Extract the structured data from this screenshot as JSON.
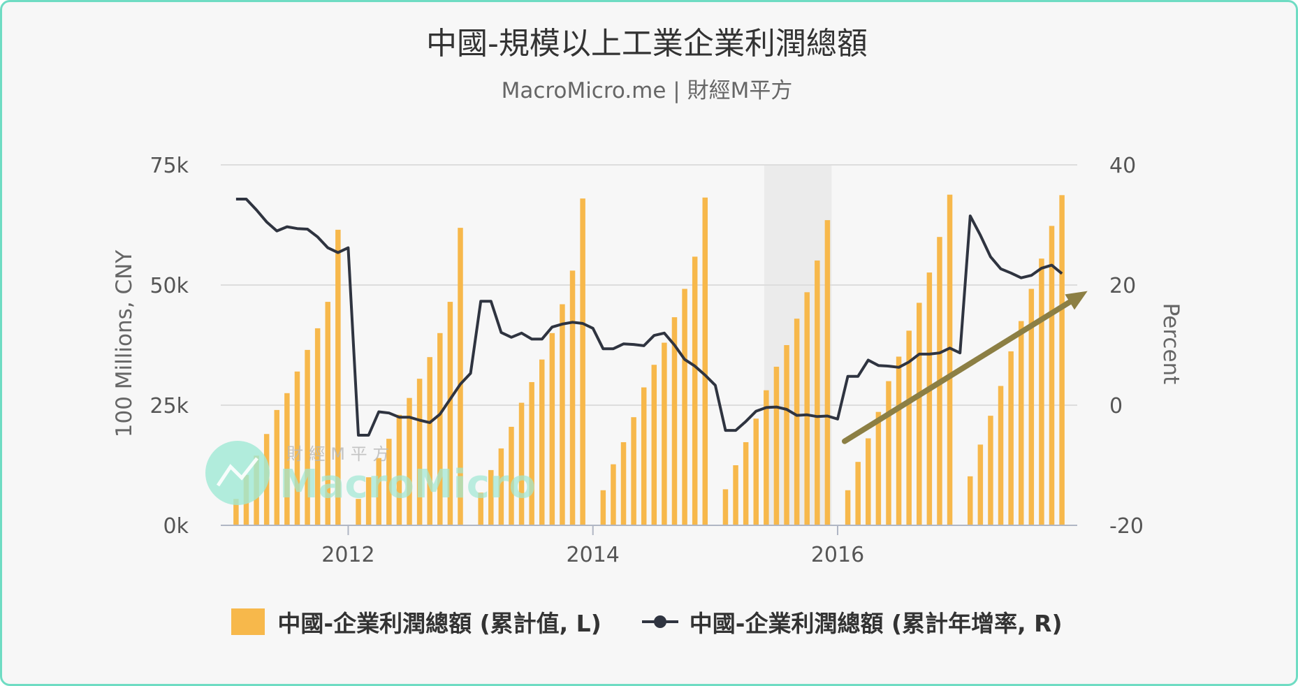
{
  "chart_title": "中國-規模以上工業企業利潤總額",
  "chart_subtitle": "MacroMicro.me | 財經M平方",
  "watermark": {
    "brand": "MacroMicro",
    "brand_zh": "財 經 M 平 方"
  },
  "colors": {
    "bar": "#f7b84b",
    "line": "#2f3440",
    "arrow": "#8c7f44",
    "recession_band": "#ebebeb",
    "watermark": "#9fe8d4"
  },
  "chart_data": {
    "type": "bar+line",
    "x_tick_labels": [
      "2012",
      "2014",
      "2016"
    ],
    "y_left": {
      "label": "100 Millions, CNY",
      "ticks": [
        "0k",
        "25k",
        "50k",
        "75k"
      ],
      "range": [
        0,
        75000
      ]
    },
    "y_right": {
      "label": "Percent",
      "ticks": [
        "-20",
        "0",
        "20",
        "40"
      ],
      "range": [
        -20,
        40
      ]
    },
    "x_range": [
      "2011-01",
      "2017-12"
    ],
    "grid": true,
    "legend_position": "bottom-center",
    "shaded_period": [
      "2015-06",
      "2015-12"
    ],
    "annotation": {
      "type": "arrow",
      "from": [
        "2016-01",
        -6
      ],
      "to": [
        "2017-12",
        19
      ]
    },
    "series": [
      {
        "name": "中國-企業利潤總額 (累計值, L)",
        "type": "bar",
        "axis": "left",
        "points": [
          [
            "2011-02",
            5500
          ],
          [
            "2011-03",
            10500
          ],
          [
            "2011-04",
            14500
          ],
          [
            "2011-05",
            19000
          ],
          [
            "2011-06",
            24000
          ],
          [
            "2011-07",
            27500
          ],
          [
            "2011-08",
            32000
          ],
          [
            "2011-09",
            36500
          ],
          [
            "2011-10",
            41000
          ],
          [
            "2011-11",
            46500
          ],
          [
            "2011-12",
            61500
          ],
          [
            "2012-02",
            5500
          ],
          [
            "2012-03",
            10000
          ],
          [
            "2012-04",
            14000
          ],
          [
            "2012-05",
            18000
          ],
          [
            "2012-06",
            23000
          ],
          [
            "2012-07",
            26500
          ],
          [
            "2012-08",
            30500
          ],
          [
            "2012-09",
            35000
          ],
          [
            "2012-10",
            40000
          ],
          [
            "2012-11",
            46500
          ],
          [
            "2012-12",
            61900
          ],
          [
            "2013-02",
            6800
          ],
          [
            "2013-03",
            11500
          ],
          [
            "2013-04",
            16000
          ],
          [
            "2013-05",
            20500
          ],
          [
            "2013-06",
            25500
          ],
          [
            "2013-07",
            29800
          ],
          [
            "2013-08",
            34500
          ],
          [
            "2013-09",
            40000
          ],
          [
            "2013-10",
            46000
          ],
          [
            "2013-11",
            53000
          ],
          [
            "2013-12",
            68000
          ],
          [
            "2014-02",
            7300
          ],
          [
            "2014-03",
            12700
          ],
          [
            "2014-04",
            17300
          ],
          [
            "2014-05",
            22500
          ],
          [
            "2014-06",
            28700
          ],
          [
            "2014-07",
            33400
          ],
          [
            "2014-08",
            38000
          ],
          [
            "2014-09",
            43300
          ],
          [
            "2014-10",
            49200
          ],
          [
            "2014-11",
            55900
          ],
          [
            "2014-12",
            68200
          ],
          [
            "2015-02",
            7500
          ],
          [
            "2015-03",
            12500
          ],
          [
            "2015-04",
            17300
          ],
          [
            "2015-05",
            22200
          ],
          [
            "2015-06",
            28100
          ],
          [
            "2015-07",
            33000
          ],
          [
            "2015-08",
            37500
          ],
          [
            "2015-09",
            43000
          ],
          [
            "2015-10",
            48500
          ],
          [
            "2015-11",
            55100
          ],
          [
            "2015-12",
            63500
          ],
          [
            "2016-02",
            7300
          ],
          [
            "2016-03",
            13200
          ],
          [
            "2016-04",
            18100
          ],
          [
            "2016-05",
            23600
          ],
          [
            "2016-06",
            30000
          ],
          [
            "2016-07",
            35100
          ],
          [
            "2016-08",
            40500
          ],
          [
            "2016-09",
            46300
          ],
          [
            "2016-10",
            52600
          ],
          [
            "2016-11",
            60000
          ],
          [
            "2016-12",
            68800
          ],
          [
            "2017-02",
            10200
          ],
          [
            "2017-03",
            16800
          ],
          [
            "2017-04",
            22800
          ],
          [
            "2017-05",
            29000
          ],
          [
            "2017-06",
            36200
          ],
          [
            "2017-07",
            42500
          ],
          [
            "2017-08",
            49200
          ],
          [
            "2017-09",
            55500
          ],
          [
            "2017-10",
            62300
          ],
          [
            "2017-11",
            68700
          ]
        ]
      },
      {
        "name": "中國-企業利潤總額 (累計年增率, R)",
        "type": "line",
        "axis": "right",
        "points": [
          [
            "2011-02",
            34.3
          ],
          [
            "2011-03",
            34.3
          ],
          [
            "2011-04",
            32.5
          ],
          [
            "2011-05",
            30.5
          ],
          [
            "2011-06",
            29.0
          ],
          [
            "2011-07",
            29.7
          ],
          [
            "2011-08",
            29.4
          ],
          [
            "2011-09",
            29.3
          ],
          [
            "2011-10",
            28.0
          ],
          [
            "2011-11",
            26.2
          ],
          [
            "2011-12",
            25.4
          ],
          [
            "2012-01",
            26.2
          ],
          [
            "2012-02",
            -5.0
          ],
          [
            "2012-03",
            -5.0
          ],
          [
            "2012-04",
            -1.1
          ],
          [
            "2012-05",
            -1.3
          ],
          [
            "2012-06",
            -2.0
          ],
          [
            "2012-07",
            -2.0
          ],
          [
            "2012-08",
            -2.5
          ],
          [
            "2012-09",
            -2.9
          ],
          [
            "2012-10",
            -1.5
          ],
          [
            "2012-11",
            1.0
          ],
          [
            "2012-12",
            3.5
          ],
          [
            "2013-01",
            5.3
          ],
          [
            "2013-02",
            17.3
          ],
          [
            "2013-03",
            17.3
          ],
          [
            "2013-04",
            12.1
          ],
          [
            "2013-05",
            11.3
          ],
          [
            "2013-06",
            12.0
          ],
          [
            "2013-07",
            11.0
          ],
          [
            "2013-08",
            11.0
          ],
          [
            "2013-09",
            13.0
          ],
          [
            "2013-10",
            13.5
          ],
          [
            "2013-11",
            13.8
          ],
          [
            "2013-12",
            13.6
          ],
          [
            "2014-01",
            12.8
          ],
          [
            "2014-02",
            9.4
          ],
          [
            "2014-03",
            9.4
          ],
          [
            "2014-04",
            10.2
          ],
          [
            "2014-05",
            10.1
          ],
          [
            "2014-06",
            9.9
          ],
          [
            "2014-07",
            11.6
          ],
          [
            "2014-08",
            12.0
          ],
          [
            "2014-09",
            10.0
          ],
          [
            "2014-10",
            7.6
          ],
          [
            "2014-11",
            6.5
          ],
          [
            "2014-12",
            5.0
          ],
          [
            "2015-01",
            3.3
          ],
          [
            "2015-02",
            -4.2
          ],
          [
            "2015-03",
            -4.2
          ],
          [
            "2015-04",
            -2.7
          ],
          [
            "2015-05",
            -1.0
          ],
          [
            "2015-06",
            -0.4
          ],
          [
            "2015-07",
            -0.3
          ],
          [
            "2015-08",
            -0.7
          ],
          [
            "2015-09",
            -1.7
          ],
          [
            "2015-10",
            -1.6
          ],
          [
            "2015-11",
            -1.9
          ],
          [
            "2015-12",
            -1.8
          ],
          [
            "2016-01",
            -2.3
          ],
          [
            "2016-02",
            4.8
          ],
          [
            "2016-03",
            4.8
          ],
          [
            "2016-04",
            7.5
          ],
          [
            "2016-05",
            6.6
          ],
          [
            "2016-06",
            6.5
          ],
          [
            "2016-07",
            6.3
          ],
          [
            "2016-08",
            7.2
          ],
          [
            "2016-09",
            8.5
          ],
          [
            "2016-10",
            8.5
          ],
          [
            "2016-11",
            8.7
          ],
          [
            "2016-12",
            9.5
          ],
          [
            "2017-01",
            8.7
          ],
          [
            "2017-02",
            31.5
          ],
          [
            "2017-03",
            28.3
          ],
          [
            "2017-04",
            24.7
          ],
          [
            "2017-05",
            22.7
          ],
          [
            "2017-06",
            22.0
          ],
          [
            "2017-07",
            21.2
          ],
          [
            "2017-08",
            21.6
          ],
          [
            "2017-09",
            22.8
          ],
          [
            "2017-10",
            23.3
          ],
          [
            "2017-11",
            21.9
          ]
        ]
      }
    ]
  }
}
